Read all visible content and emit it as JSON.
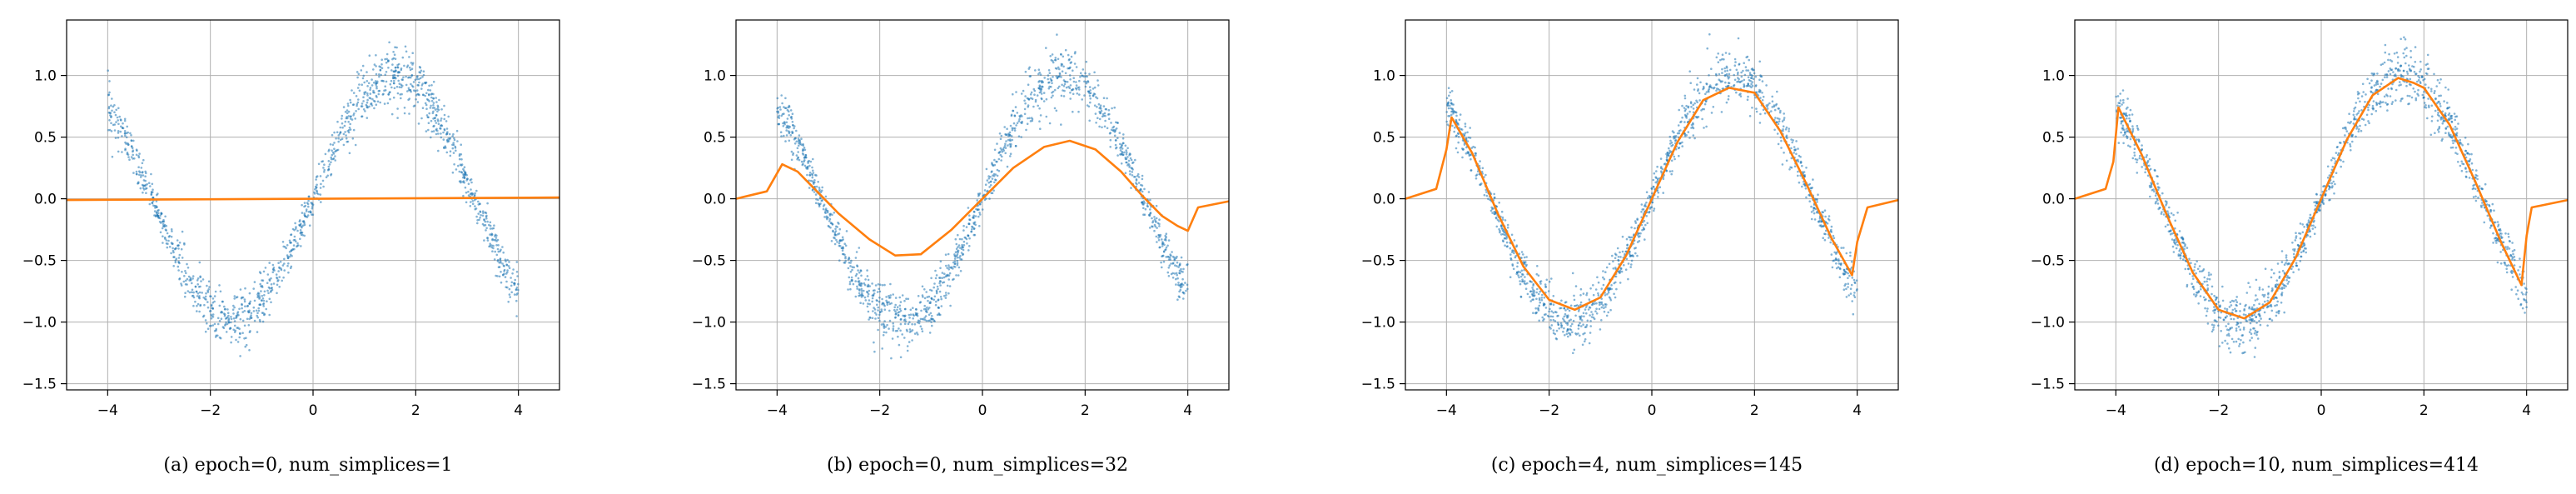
{
  "figure": {
    "captions": [
      "(a) epoch=0, num_simplices=1",
      "(b) epoch=0, num_simplices=32",
      "(c) epoch=4, num_simplices=145",
      "(d) epoch=10, num_simplices=414"
    ]
  },
  "colors": {
    "scatter": "#1f77b4",
    "fit": "#ff7f0e",
    "grid": "#b0b0b0"
  },
  "chart_data": [
    {
      "type": "scatter",
      "title": "",
      "xlabel": "",
      "ylabel": "",
      "xlim": [
        -4.8,
        4.8
      ],
      "ylim": [
        -1.55,
        1.45
      ],
      "xticks": [
        -4,
        -2,
        0,
        2,
        4
      ],
      "yticks": [
        -1.5,
        -1.0,
        -0.5,
        0.0,
        0.5,
        1.0
      ],
      "grid": true,
      "series": [
        {
          "kind": "scatter",
          "x_range": [
            -4,
            4
          ],
          "curve": "sin",
          "noise_approx": 0.1
        },
        {
          "kind": "line",
          "x": [
            -4.8,
            4.8
          ],
          "y": [
            -0.01,
            0.01
          ]
        }
      ]
    },
    {
      "type": "scatter",
      "title": "",
      "xlabel": "",
      "ylabel": "",
      "xlim": [
        -4.8,
        4.8
      ],
      "ylim": [
        -1.55,
        1.45
      ],
      "xticks": [
        -4,
        -2,
        0,
        2,
        4
      ],
      "yticks": [
        -1.5,
        -1.0,
        -0.5,
        0.0,
        0.5,
        1.0
      ],
      "grid": true,
      "series": [
        {
          "kind": "scatter",
          "x_range": [
            -4,
            4
          ],
          "curve": "sin",
          "noise_approx": 0.1
        },
        {
          "kind": "line",
          "x": [
            -4.8,
            -4.2,
            -3.9,
            -3.6,
            -3.2,
            -2.8,
            -2.2,
            -1.7,
            -1.2,
            -0.6,
            0.0,
            0.6,
            1.2,
            1.7,
            2.2,
            2.7,
            3.1,
            3.5,
            3.8,
            4.0,
            4.2,
            4.8
          ],
          "y": [
            0.0,
            0.06,
            0.28,
            0.22,
            0.05,
            -0.12,
            -0.33,
            -0.46,
            -0.45,
            -0.25,
            0.0,
            0.25,
            0.42,
            0.47,
            0.4,
            0.22,
            0.03,
            -0.14,
            -0.22,
            -0.26,
            -0.07,
            -0.02
          ]
        }
      ]
    },
    {
      "type": "scatter",
      "title": "",
      "xlabel": "",
      "ylabel": "",
      "xlim": [
        -4.8,
        4.8
      ],
      "ylim": [
        -1.55,
        1.45
      ],
      "xticks": [
        -4,
        -2,
        0,
        2,
        4
      ],
      "yticks": [
        -1.5,
        -1.0,
        -0.5,
        0.0,
        0.5,
        1.0
      ],
      "grid": true,
      "series": [
        {
          "kind": "scatter",
          "x_range": [
            -4,
            4
          ],
          "curve": "sin",
          "noise_approx": 0.1
        },
        {
          "kind": "line",
          "x": [
            -4.8,
            -4.2,
            -4.0,
            -3.9,
            -3.5,
            -3.0,
            -2.5,
            -2.0,
            -1.5,
            -1.0,
            -0.5,
            0.0,
            0.5,
            1.0,
            1.5,
            2.0,
            2.5,
            3.0,
            3.5,
            3.9,
            4.0,
            4.2,
            4.8
          ],
          "y": [
            0.0,
            0.08,
            0.4,
            0.66,
            0.37,
            -0.12,
            -0.55,
            -0.82,
            -0.9,
            -0.8,
            -0.46,
            0.0,
            0.46,
            0.8,
            0.9,
            0.86,
            0.55,
            0.13,
            -0.32,
            -0.62,
            -0.35,
            -0.07,
            -0.01
          ]
        }
      ]
    },
    {
      "type": "scatter",
      "title": "",
      "xlabel": "",
      "ylabel": "",
      "xlim": [
        -4.8,
        4.8
      ],
      "ylim": [
        -1.55,
        1.45
      ],
      "xticks": [
        -4,
        -2,
        0,
        2,
        4
      ],
      "yticks": [
        -1.5,
        -1.0,
        -0.5,
        0.0,
        0.5,
        1.0
      ],
      "grid": true,
      "series": [
        {
          "kind": "scatter",
          "x_range": [
            -4,
            4
          ],
          "curve": "sin",
          "noise_approx": 0.1
        },
        {
          "kind": "line",
          "x": [
            -4.8,
            -4.2,
            -4.05,
            -3.95,
            -3.5,
            -3.0,
            -2.5,
            -2.0,
            -1.5,
            -1.0,
            -0.5,
            0.0,
            0.5,
            1.0,
            1.5,
            1.8,
            2.0,
            2.5,
            3.0,
            3.5,
            3.9,
            4.0,
            4.1,
            4.8
          ],
          "y": [
            0.0,
            0.08,
            0.3,
            0.74,
            0.36,
            -0.14,
            -0.6,
            -0.9,
            -0.97,
            -0.84,
            -0.48,
            0.0,
            0.48,
            0.84,
            0.98,
            0.94,
            0.9,
            0.6,
            0.14,
            -0.35,
            -0.7,
            -0.3,
            -0.07,
            -0.01
          ]
        }
      ]
    }
  ]
}
